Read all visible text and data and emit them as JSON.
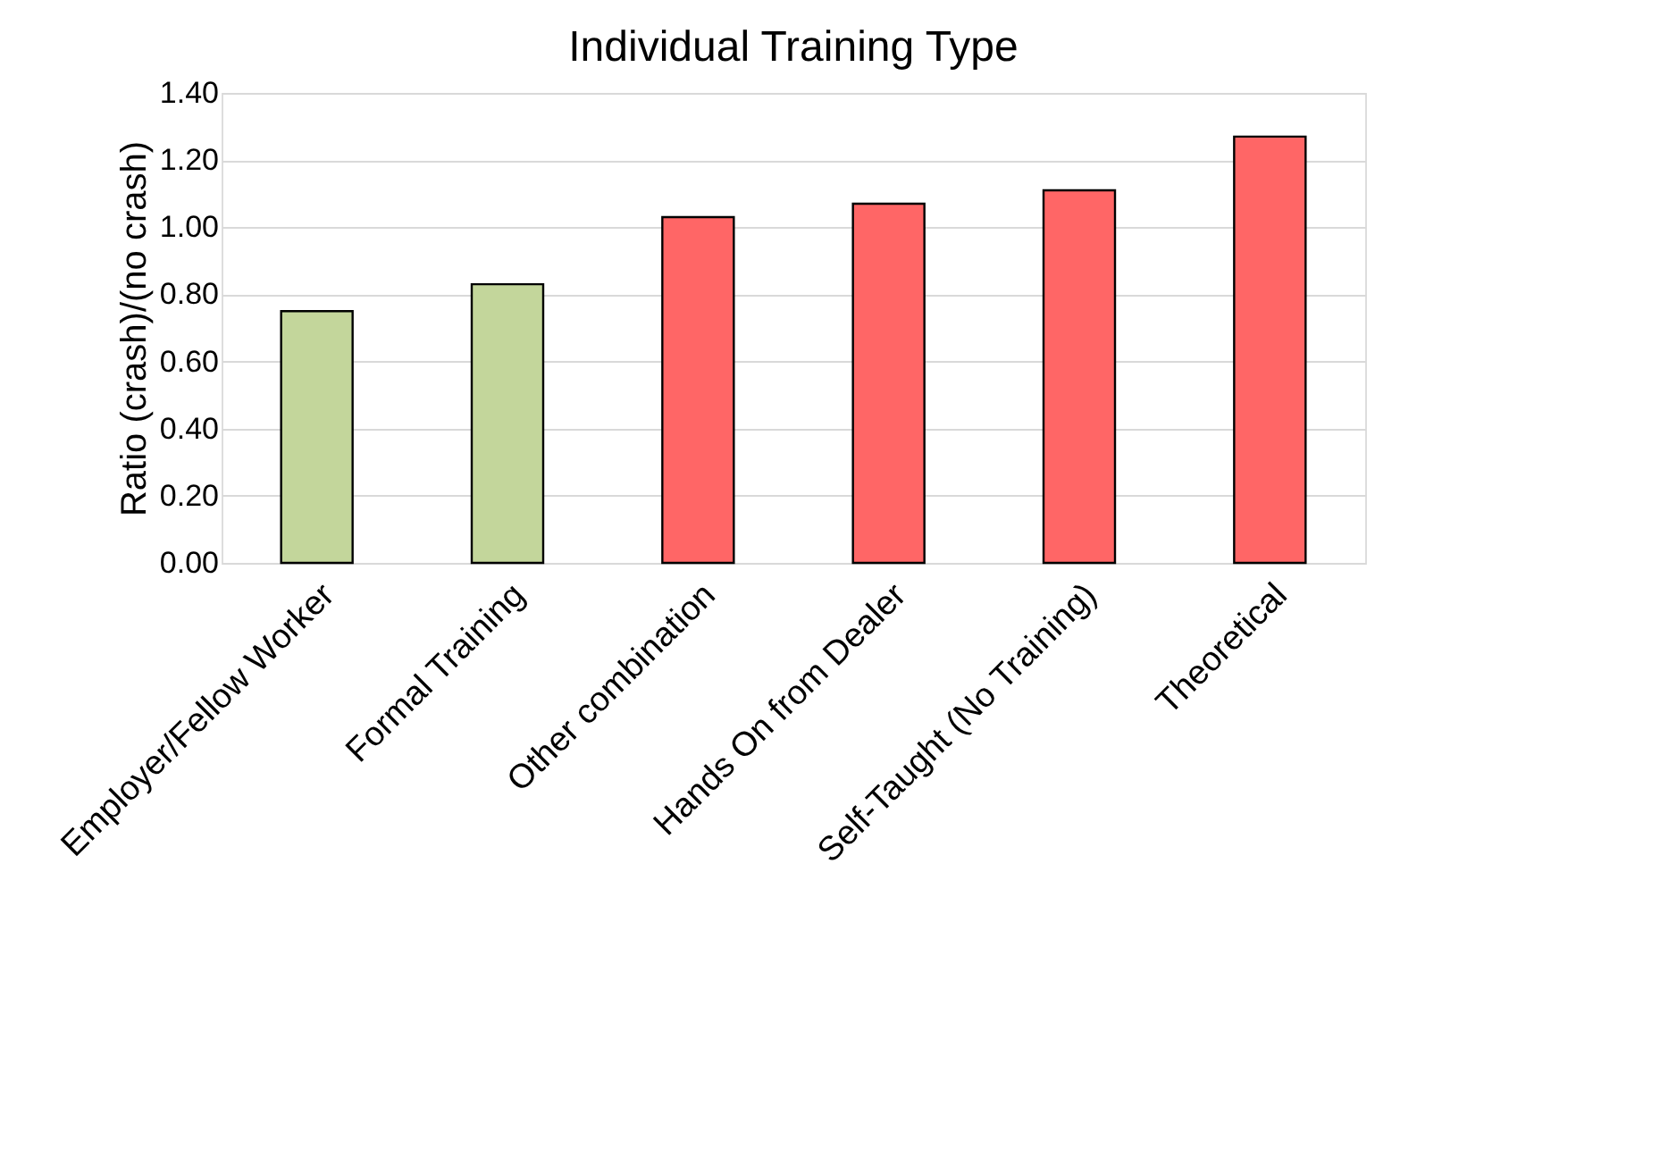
{
  "chart_data": {
    "type": "bar",
    "title": "Individual Training Type",
    "ylabel": "Ratio (crash)/(no crash)",
    "categories": [
      "Employer/Fellow Worker",
      "Formal Training",
      "Other combination",
      "Hands On from Dealer",
      "Self-Taught (No Training)",
      "Theoretical"
    ],
    "values": [
      0.75,
      0.83,
      1.03,
      1.07,
      1.11,
      1.27
    ],
    "colors": [
      "#c3d69b",
      "#c3d69b",
      "#ff6666",
      "#ff6666",
      "#ff6666",
      "#ff6666"
    ],
    "ylim": [
      0,
      1.4
    ],
    "yticks": [
      {
        "value": 0,
        "label": "0.00"
      },
      {
        "value": 0.2,
        "label": "0.20"
      },
      {
        "value": 0.4,
        "label": "0.40"
      },
      {
        "value": 0.6,
        "label": "0.60"
      },
      {
        "value": 0.8,
        "label": "0.80"
      },
      {
        "value": 1.0,
        "label": "1.00"
      },
      {
        "value": 1.2,
        "label": "1.20"
      },
      {
        "value": 1.4,
        "label": "1.40"
      }
    ],
    "grid": "y"
  }
}
